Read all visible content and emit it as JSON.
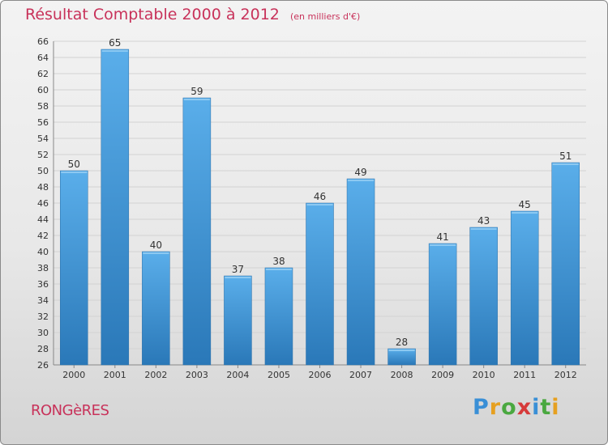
{
  "title": "Résultat Comptable 2000 à 2012",
  "subtitle": "(en milliers d'€)",
  "commune": "RONGèRES",
  "logo": {
    "letters": [
      "P",
      "r",
      "o",
      "x",
      "i",
      "t",
      "i"
    ],
    "colors": [
      "#3a8fd6",
      "#e6a020",
      "#4aa840",
      "#d63a3a",
      "#3a8fd6",
      "#4aa840",
      "#e6a020"
    ]
  },
  "colors": {
    "accent": "#c8325a",
    "bar_top": "#5aaeea",
    "bar_bottom": "#2a78b8"
  },
  "chart_data": {
    "type": "bar",
    "title": "Résultat Comptable 2000 à 2012",
    "subtitle": "(en milliers d'€)",
    "categories": [
      "2000",
      "2001",
      "2002",
      "2003",
      "2004",
      "2005",
      "2006",
      "2007",
      "2008",
      "2009",
      "2010",
      "2011",
      "2012"
    ],
    "values": [
      50,
      65,
      40,
      59,
      37,
      38,
      46,
      49,
      28,
      41,
      43,
      45,
      51
    ],
    "ylim": [
      26,
      66
    ],
    "ytick_step": 2,
    "grid": true,
    "data_labels": true
  }
}
